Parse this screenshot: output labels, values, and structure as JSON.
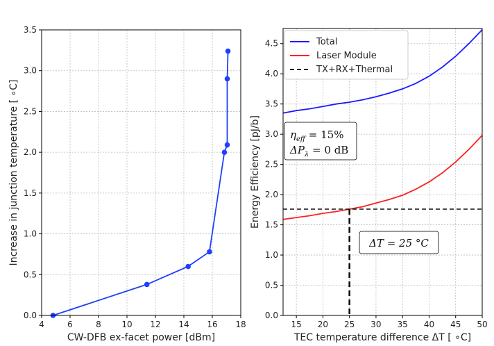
{
  "chart_data": [
    {
      "type": "line",
      "xlabel": "CW-DFB ex-facet power [dBm]",
      "ylabel": "Increase in junction temperature [ ∘C]",
      "xlim": [
        4,
        18
      ],
      "ylim": [
        0,
        3.5
      ],
      "xticks": [
        "4",
        "6",
        "8",
        "10",
        "12",
        "14",
        "16",
        "18"
      ],
      "yticks": [
        "0.0",
        "0.5",
        "1.0",
        "1.5",
        "2.0",
        "2.5",
        "3.0",
        "3.5"
      ],
      "grid": true,
      "series": [
        {
          "color": "#1f3fff",
          "markers": true,
          "x": [
            4.8,
            11.4,
            14.3,
            15.8,
            16.85,
            17.05,
            17.05,
            17.1
          ],
          "y": [
            0.0,
            0.38,
            0.6,
            0.78,
            2.0,
            2.09,
            2.9,
            3.24
          ]
        }
      ]
    },
    {
      "type": "line",
      "xlabel": "TEC temperature difference ΔT [ ∘C]",
      "ylabel": "Energy Efficiency [pJ/b]",
      "xlim": [
        12.5,
        50
      ],
      "ylim": [
        0,
        4.75
      ],
      "xticks": [
        "15",
        "20",
        "25",
        "30",
        "35",
        "40",
        "45",
        "50"
      ],
      "yticks": [
        "0.0",
        "0.5",
        "1.0",
        "1.5",
        "2.0",
        "2.5",
        "3.0",
        "3.5",
        "4.0",
        "4.5"
      ],
      "grid": true,
      "legend": "top-left",
      "series": [
        {
          "name": "Total",
          "color": "#1a1aff",
          "style": "solid",
          "x": [
            12.5,
            15,
            17.5,
            20,
            22.5,
            25,
            27.5,
            30,
            32.5,
            35,
            37.5,
            40,
            42.5,
            45,
            47.5,
            50
          ],
          "y": [
            3.35,
            3.39,
            3.42,
            3.46,
            3.5,
            3.53,
            3.57,
            3.62,
            3.68,
            3.75,
            3.84,
            3.96,
            4.11,
            4.29,
            4.5,
            4.73
          ]
        },
        {
          "name": "Laser Module",
          "color": "#ff2020",
          "style": "solid",
          "x": [
            12.5,
            15,
            17.5,
            20,
            22.5,
            25,
            27.5,
            30,
            32.5,
            35,
            37.5,
            40,
            42.5,
            45,
            47.5,
            50
          ],
          "y": [
            1.59,
            1.62,
            1.65,
            1.69,
            1.72,
            1.76,
            1.8,
            1.86,
            1.92,
            1.99,
            2.09,
            2.21,
            2.36,
            2.54,
            2.75,
            2.98
          ]
        },
        {
          "name": "TX+RX+Thermal",
          "color": "#111111",
          "style": "dashed",
          "x": [
            12.5,
            50
          ],
          "y": [
            1.76,
            1.76
          ]
        }
      ],
      "annotations": {
        "eta": "ηeff = 15%",
        "eta_main": "η",
        "eta_sub": "eff",
        "eta_rest": " = 15%",
        "dp_main": "ΔP",
        "dp_sub": "λ",
        "dp_rest": " = 0 dB",
        "dt": "ΔT = 25 °C",
        "dt_x": 25,
        "dt_y": 1.76
      }
    }
  ]
}
